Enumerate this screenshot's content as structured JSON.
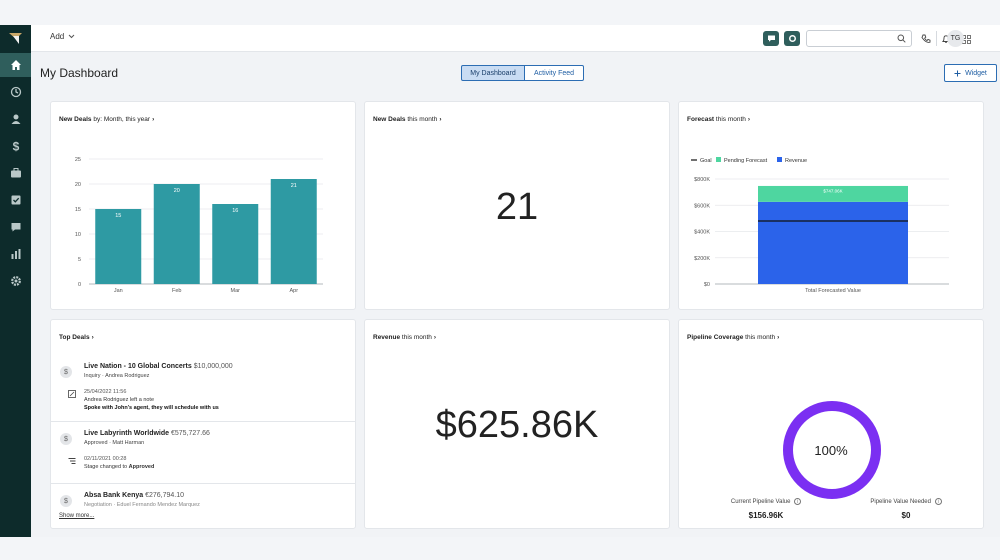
{
  "topbar": {
    "add_label": "Add",
    "user_initials": "TG"
  },
  "header": {
    "title": "My Dashboard",
    "view_tabs": [
      "My Dashboard",
      "Activity Feed"
    ],
    "widget_label": "Widget"
  },
  "colors": {
    "sidebar_bg": "#0d2b2b",
    "sidebar_active": "#2f5e5c",
    "bar_teal": "#2e9aa3",
    "revenue_blue": "#2b63ea",
    "pending_green": "#4ed6a0",
    "pipeline_purple": "#7b2ff2",
    "accent_blue": "#2c6db3"
  },
  "widgets": {
    "new_deals_chart": {
      "title_bold": "New Deals",
      "title_rest": " by: Month, this year"
    },
    "new_deals_count": {
      "title_bold": "New Deals",
      "title_rest": " this month",
      "value": "21"
    },
    "forecast": {
      "title_bold": "Forecast",
      "title_rest": " this month",
      "legend": [
        "Goal",
        "Pending Forecast",
        "Revenue"
      ]
    },
    "top_deals": {
      "title_bold": "Top Deals",
      "show_more": "Show more...",
      "deals": [
        {
          "name": "Live Nation - 10 Global Concerts",
          "amount": "$10,000,000",
          "stage_owner": "Inquiry · Andrea Rodriguez",
          "activity_time": "25/04/2022 11:56",
          "activity_line": "Andrea Rodriguez left a note",
          "activity_bold": "Spoke with John's agent, they will schedule with us"
        },
        {
          "name": "Live Labyrinth Worldwide",
          "amount": "€575,727.66",
          "stage_owner": "Approved · Matt Harman",
          "activity_time": "02/11/2021 00:28",
          "activity_line": "Stage changed to ",
          "activity_bold": "Approved"
        },
        {
          "name": "Absa Bank Kenya",
          "amount": "€276,794.10",
          "stage_owner": "Negotiation · Eduel Fernando Mendez Marquez"
        }
      ]
    },
    "revenue": {
      "title_bold": "Revenue",
      "title_rest": " this month",
      "value": "$625.86K"
    },
    "pipeline_coverage": {
      "title_bold": "Pipeline Coverage",
      "title_rest": " this month",
      "percent_label": "100%",
      "percent": 100,
      "current_label": "Current Pipeline Value",
      "current_value": "$156.96K",
      "needed_label": "Pipeline Value Needed",
      "needed_value": "$0"
    }
  },
  "chart_data": [
    {
      "type": "bar",
      "categories": [
        "Jan",
        "Feb",
        "Mar",
        "Apr"
      ],
      "values": [
        15,
        20,
        16,
        21
      ],
      "ylim": [
        0,
        25
      ],
      "yticks": [
        0,
        5,
        10,
        15,
        20,
        25
      ],
      "grid": true
    },
    {
      "type": "bar",
      "categories": [
        "Total Forecasted Value"
      ],
      "series": [
        {
          "name": "Revenue",
          "values": [
            625860
          ]
        },
        {
          "name": "Pending Forecast",
          "values": [
            121198
          ]
        }
      ],
      "goal": 480000,
      "segment_label": "$747.06K",
      "stacked": true,
      "ylim": [
        0,
        800000
      ],
      "ytick_labels": [
        "$0",
        "$200K",
        "$400K",
        "$600K",
        "$800K"
      ],
      "yticks": [
        0,
        200000,
        400000,
        600000,
        800000
      ],
      "legend_position": "top-left",
      "grid": true
    }
  ]
}
